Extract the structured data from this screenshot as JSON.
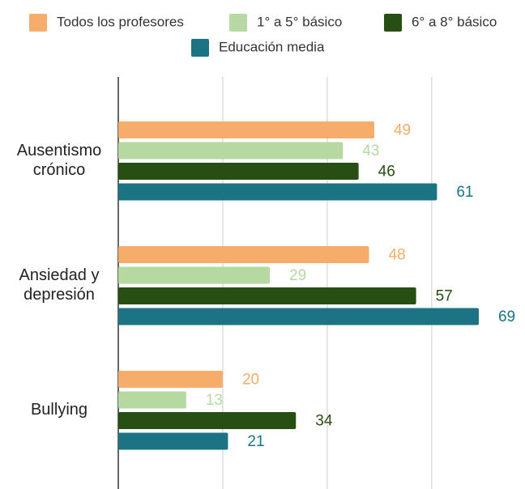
{
  "chart_data": {
    "type": "bar",
    "orientation": "horizontal",
    "categories": [
      "Ausentismo crónico",
      "Ansiedad y depresión",
      "Bullying"
    ],
    "series": [
      {
        "name": "Todos los profesores",
        "color": "#f6ad6b",
        "values": [
          49,
          48,
          20
        ]
      },
      {
        "name": "1° a 5° básico",
        "color": "#b5d9a0",
        "values": [
          43,
          29,
          13
        ]
      },
      {
        "name": "6° a 8° básico",
        "color": "#274e13",
        "values": [
          46,
          57,
          34
        ]
      },
      {
        "name": "Educación media",
        "color": "#1b7383",
        "values": [
          61,
          69,
          21
        ]
      }
    ],
    "xlim": [
      0,
      78
    ],
    "xticks": [
      0,
      20,
      40,
      60
    ],
    "grid": true,
    "legend": "top"
  }
}
